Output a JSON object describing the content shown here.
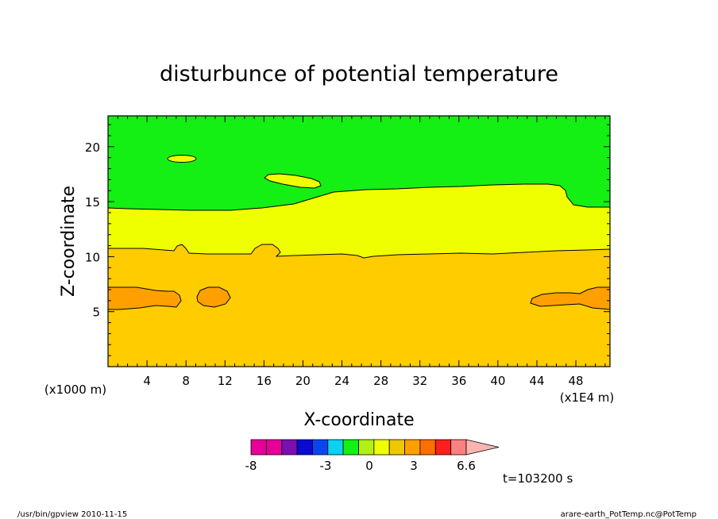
{
  "chart_data": {
    "type": "contour",
    "title": "disturbunce of potential temperature",
    "xlabel": "X-coordinate",
    "ylabel": "Z-coordinate",
    "x_unit_label": "(x1E4 m)",
    "y_unit_label": "(x1000 m)",
    "xlim": [
      0,
      51.5
    ],
    "ylim": [
      0,
      22.8
    ],
    "x_ticks": [
      "4",
      "8",
      "12",
      "16",
      "20",
      "24",
      "28",
      "32",
      "36",
      "40",
      "44",
      "48"
    ],
    "y_ticks": [
      "5",
      "10",
      "15",
      "20"
    ],
    "time_label": "t=103200 s",
    "colorbar": {
      "tick_labels": [
        "-8",
        "-3",
        "0",
        "3",
        "6.6"
      ],
      "levels": [
        -8,
        -3,
        0,
        3,
        6.6
      ],
      "colors": [
        "#e60099",
        "#e60099",
        "#7a10b0",
        "#0a0ad2",
        "#0a46f0",
        "#0ad2f0",
        "#14f014",
        "#b4f014",
        "#f0ff00",
        "#f0c800",
        "#ffa000",
        "#ff6e00",
        "#ff1e1e",
        "#ff8080",
        "#ffb4b4"
      ]
    },
    "regions": [
      {
        "name": "upper",
        "color": "#14f014"
      },
      {
        "name": "middle",
        "color": "#f0ff00"
      },
      {
        "name": "lower",
        "color": "#ffcc00"
      },
      {
        "name": "cores",
        "color": "#ffa000"
      }
    ]
  },
  "footer": {
    "left": "/usr/bin/gpview  2010-11-15",
    "right": "arare-earth_PotTemp.nc@PotTemp"
  },
  "colors": {
    "green": "#14f014",
    "yellow": "#f0ff00",
    "gold": "#ffcc00",
    "orange": "#ffa000",
    "line": "#000000"
  }
}
